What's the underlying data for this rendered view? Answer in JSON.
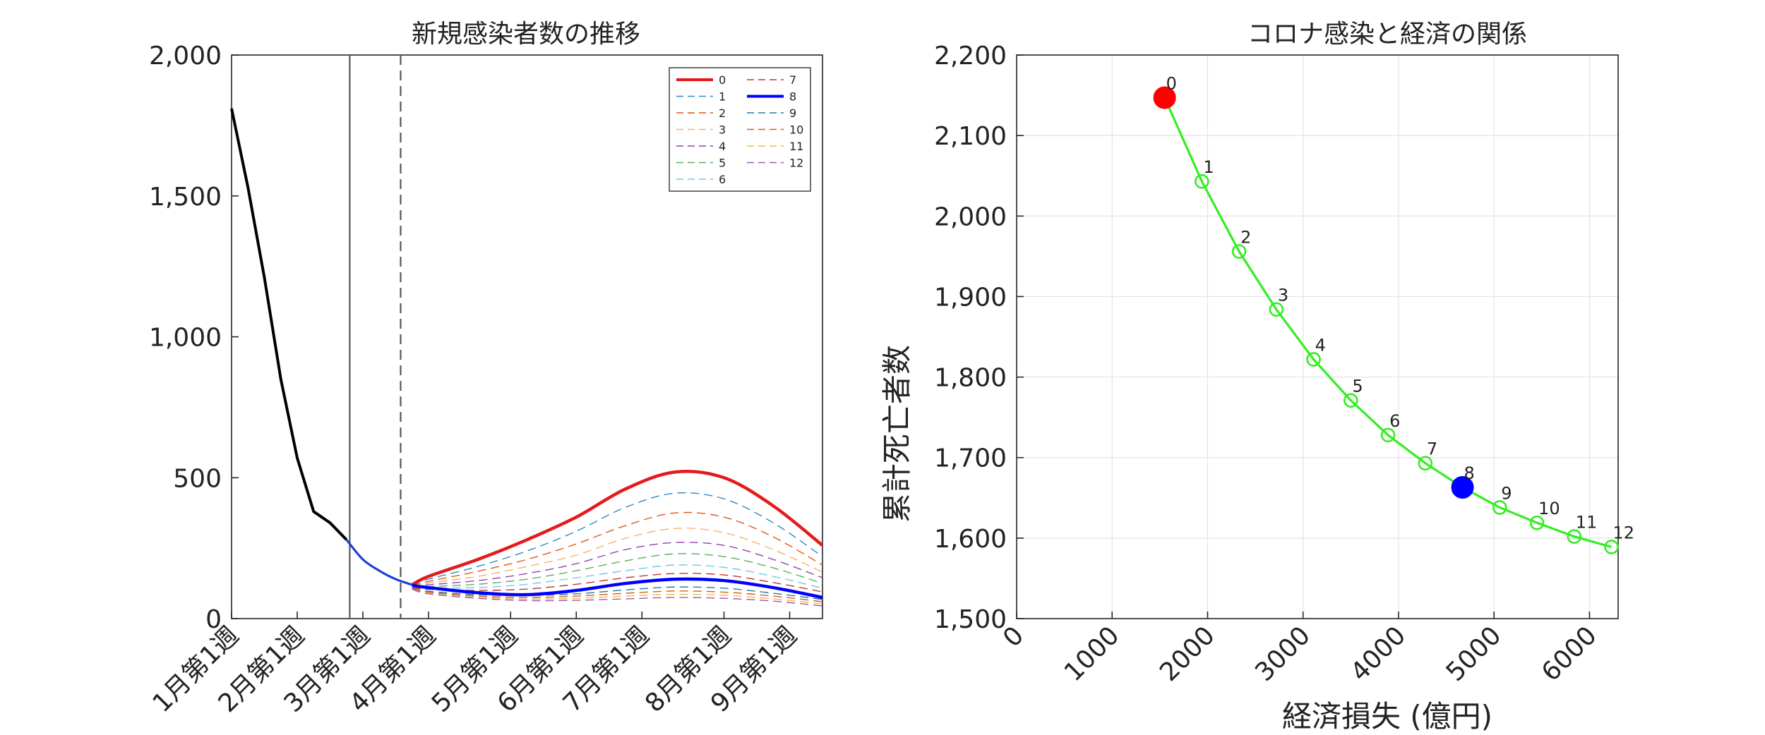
{
  "chart_data": [
    {
      "type": "line",
      "title": "新規感染者数の推移",
      "xlabel": "",
      "ylabel": "",
      "ylim": [
        0,
        2000
      ],
      "xlim": [
        0,
        36
      ],
      "yticks": [
        0,
        500,
        1000,
        1500,
        2000
      ],
      "ytick_labels": [
        "0",
        "500",
        "1,000",
        "1,500",
        "2,000"
      ],
      "xticks": [
        0,
        4,
        8,
        12,
        17,
        21,
        25,
        30,
        34
      ],
      "xtick_labels": [
        "1月第1週",
        "2月第1週",
        "3月第1週",
        "4月第1週",
        "5月第1週",
        "6月第1週",
        "7月第1週",
        "8月第1週",
        "9月第1週"
      ],
      "vlines": [
        {
          "x": 7.2,
          "style": "solid"
        },
        {
          "x": 10.3,
          "style": "dashed"
        }
      ],
      "history": {
        "x": [
          0,
          1,
          2,
          3,
          4,
          5,
          6,
          7,
          8,
          9,
          10,
          11
        ],
        "values": [
          1810,
          1530,
          1210,
          850,
          570,
          380,
          340,
          280,
          210,
          170,
          140,
          120
        ],
        "color": "#000000"
      },
      "scenario_start_x": 7,
      "scenario_start_value": 280,
      "scenario_common": {
        "x": [
          7,
          8,
          9,
          10,
          11
        ],
        "values": [
          280,
          210,
          170,
          140,
          120
        ]
      },
      "legend_position": "top-right",
      "series": [
        {
          "name": "0",
          "color": "#e41a1c",
          "style": "solid",
          "bold": true,
          "x": [
            11,
            12,
            15,
            18,
            21,
            24,
            27,
            30,
            33,
            36
          ],
          "values": [
            120,
            150,
            210,
            280,
            360,
            460,
            520,
            500,
            400,
            260
          ]
        },
        {
          "name": "1",
          "color": "#2b8cbe",
          "style": "dashed",
          "x": [
            11,
            12,
            15,
            18,
            21,
            24,
            27,
            30,
            33,
            36
          ],
          "values": [
            120,
            140,
            185,
            240,
            310,
            395,
            445,
            425,
            340,
            220
          ]
        },
        {
          "name": "2",
          "color": "#e6550d",
          "style": "dashed",
          "x": [
            11,
            12,
            15,
            18,
            21,
            24,
            27,
            30,
            33,
            36
          ],
          "values": [
            118,
            132,
            168,
            210,
            265,
            330,
            375,
            360,
            290,
            190
          ]
        },
        {
          "name": "3",
          "color": "#fdae6b",
          "style": "dashed",
          "x": [
            11,
            12,
            15,
            18,
            21,
            24,
            27,
            30,
            33,
            36
          ],
          "values": [
            116,
            126,
            150,
            185,
            225,
            285,
            320,
            305,
            245,
            165
          ]
        },
        {
          "name": "4",
          "color": "#8e44ad",
          "style": "dashed",
          "x": [
            11,
            12,
            15,
            18,
            21,
            24,
            27,
            30,
            33,
            36
          ],
          "values": [
            114,
            120,
            135,
            160,
            195,
            245,
            270,
            260,
            210,
            145
          ]
        },
        {
          "name": "5",
          "color": "#5aae61",
          "style": "dashed",
          "x": [
            11,
            12,
            15,
            18,
            21,
            24,
            27,
            30,
            33,
            36
          ],
          "values": [
            112,
            114,
            122,
            140,
            170,
            205,
            230,
            220,
            180,
            125
          ]
        },
        {
          "name": "6",
          "color": "#74c5e8",
          "style": "dashed",
          "x": [
            11,
            12,
            15,
            18,
            21,
            24,
            27,
            30,
            33,
            36
          ],
          "values": [
            110,
            109,
            110,
            122,
            145,
            170,
            190,
            182,
            150,
            108
          ]
        },
        {
          "name": "7",
          "color": "#c0392b",
          "style": "dashed",
          "x": [
            11,
            12,
            15,
            18,
            21,
            24,
            27,
            30,
            33,
            36
          ],
          "values": [
            109,
            104,
            100,
            105,
            122,
            145,
            160,
            155,
            128,
            95
          ]
        },
        {
          "name": "8",
          "color": "#0000ff",
          "style": "solid",
          "bold": true,
          "x": [
            11,
            12,
            15,
            18,
            21,
            24,
            27,
            30,
            33,
            36
          ],
          "values": [
            118,
            110,
            92,
            85,
            100,
            125,
            140,
            135,
            110,
            75
          ]
        },
        {
          "name": "9",
          "color": "#1f78b4",
          "style": "dashed",
          "x": [
            11,
            12,
            15,
            18,
            21,
            24,
            27,
            30,
            33,
            36
          ],
          "values": [
            107,
            97,
            85,
            82,
            88,
            102,
            112,
            108,
            90,
            68
          ]
        },
        {
          "name": "10",
          "color": "#d95f0e",
          "style": "dashed",
          "x": [
            11,
            12,
            15,
            18,
            21,
            24,
            27,
            30,
            33,
            36
          ],
          "values": [
            106,
            94,
            80,
            75,
            80,
            90,
            98,
            94,
            80,
            60
          ]
        },
        {
          "name": "11",
          "color": "#f1b94c",
          "style": "dashed",
          "x": [
            11,
            12,
            15,
            18,
            21,
            24,
            27,
            30,
            33,
            36
          ],
          "values": [
            105,
            91,
            76,
            69,
            72,
            80,
            86,
            83,
            70,
            52
          ]
        },
        {
          "name": "12",
          "color": "#9b59b6",
          "style": "dashed",
          "x": [
            11,
            12,
            15,
            18,
            21,
            24,
            27,
            30,
            33,
            36
          ],
          "values": [
            104,
            88,
            72,
            64,
            65,
            70,
            75,
            72,
            62,
            45
          ]
        }
      ]
    },
    {
      "type": "scatter",
      "title": "コロナ感染と経済の関係",
      "xlabel": "経済損失 (億円)",
      "ylabel": "累計死亡者数",
      "xlim": [
        0,
        6300
      ],
      "ylim": [
        1500,
        2200
      ],
      "grid": true,
      "xticks": [
        0,
        1000,
        2000,
        3000,
        4000,
        5000,
        6000
      ],
      "xtick_labels": [
        "0",
        "1000",
        "2000",
        "3000",
        "4000",
        "5000",
        "6000"
      ],
      "yticks": [
        1500,
        1600,
        1700,
        1800,
        1900,
        2000,
        2100,
        2200
      ],
      "ytick_labels": [
        "1,500",
        "1,600",
        "1,700",
        "1,800",
        "1,900",
        "2,000",
        "2,100",
        "2,200"
      ],
      "line_color": "#33ee22",
      "highlight": [
        {
          "index": 0,
          "color": "#ff0000"
        },
        {
          "index": 8,
          "color": "#0000ff"
        }
      ],
      "points": [
        {
          "label": "0",
          "x": 1550,
          "y": 2147
        },
        {
          "label": "1",
          "x": 1940,
          "y": 2043
        },
        {
          "label": "2",
          "x": 2330,
          "y": 1956
        },
        {
          "label": "3",
          "x": 2720,
          "y": 1884
        },
        {
          "label": "4",
          "x": 3110,
          "y": 1822
        },
        {
          "label": "5",
          "x": 3500,
          "y": 1771
        },
        {
          "label": "6",
          "x": 3890,
          "y": 1728
        },
        {
          "label": "7",
          "x": 4280,
          "y": 1693
        },
        {
          "label": "8",
          "x": 4670,
          "y": 1663
        },
        {
          "label": "9",
          "x": 5060,
          "y": 1638
        },
        {
          "label": "10",
          "x": 5450,
          "y": 1619
        },
        {
          "label": "11",
          "x": 5840,
          "y": 1602
        },
        {
          "label": "12",
          "x": 6230,
          "y": 1589
        }
      ]
    }
  ]
}
